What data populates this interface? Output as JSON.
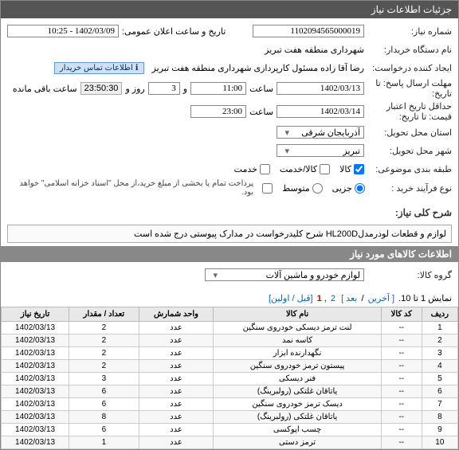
{
  "header": {
    "title": "جزئیات اطلاعات نیاز"
  },
  "form": {
    "niaz_number_label": "شماره نیاز:",
    "niaz_number": "1102094565000019",
    "pub_datetime_label": "تاریخ و ساعت اعلان عمومی:",
    "pub_datetime": "1402/03/09 - 10:25",
    "buyer_label": "نام دستگاه خریدار:",
    "buyer": "شهرداری منطقه هفت تبریز",
    "requester_label": "ایجاد کننده درخواست:",
    "requester": "رضا آقا زاده مسئول کارپردازی شهرداری منطقه هفت تبریز",
    "contact_link": "اطلاعات تماس خریدار",
    "deadline_label": "مهلت ارسال پاسخ: تا تاریخ:",
    "deadline_date": "1402/03/13",
    "time_label": "ساعت",
    "deadline_time": "11:00",
    "and_label": "و",
    "deadline_days": "3",
    "days_and_label": "روز و",
    "remaining": "23:50:30",
    "remaining_label": "ساعت باقی مانده",
    "validity_label": "حداقل تاریخ اعتبار قیمت: تا تاریخ:",
    "validity_date": "1402/03/14",
    "validity_time": "23:00",
    "province_label": "استان محل تحویل:",
    "province": "آذربایجان شرقی",
    "down_arrow": "▾",
    "city_label": "شهر محل تحویل:",
    "city": "تبریز",
    "category_label": "طبقه بندی موضوعی:",
    "cat_kala": "کالا",
    "cat_service": "کالا/خدمت",
    "cat_service2": "خدمت",
    "buy_type_label": "نوع فرآیند خرید :",
    "bt_partial": "جزیی",
    "bt_medium": "متوسط",
    "buy_note": "پرداخت تمام یا بخشی از مبلغ خرید،از محل \"اسناد خزانه اسلامی\" خواهد بود.",
    "desc_title": "شرح کلی نیاز:",
    "desc_text": "لوازم و قطعات لودرمدلHL200D شرح کلیدرخواست در مدارک پیوستی درج شده است",
    "goods_title": "اطلاعات کالاهای مورد نیاز",
    "group_label": "گروه کالا:",
    "group_value": "لوازم خودرو و ماشین آلات",
    "pager_text": "نمایش 1 تا 10.",
    "pager_prev": "[ آخرین",
    "pager_next": "بعد ]",
    "pager_p1": "1",
    "pager_p2": "2",
    "pager_first": "[قبل / اولین]"
  },
  "table": {
    "headers": [
      "ردیف",
      "کد کالا",
      "نام کالا",
      "واحد شمارش",
      "تعداد / مقدار",
      "تاریخ نیاز"
    ],
    "rows": [
      [
        "1",
        "--",
        "لنت ترمز دیسکی خودروی سنگین",
        "عدد",
        "2",
        "1402/03/13"
      ],
      [
        "2",
        "--",
        "کاسه نمد",
        "عدد",
        "2",
        "1402/03/13"
      ],
      [
        "3",
        "--",
        "نگهدارنده ابزار",
        "عدد",
        "2",
        "1402/03/13"
      ],
      [
        "4",
        "--",
        "پیستون ترمز خودروی سنگین",
        "عدد",
        "2",
        "1402/03/13"
      ],
      [
        "5",
        "--",
        "فنر دیسکی",
        "عدد",
        "3",
        "1402/03/13"
      ],
      [
        "6",
        "--",
        "یاتاقان غلتکی (رولبرینگ)",
        "عدد",
        "6",
        "1402/03/13"
      ],
      [
        "7",
        "--",
        "دیسک ترمز خودروی سنگین",
        "عدد",
        "6",
        "1402/03/13"
      ],
      [
        "8",
        "--",
        "یاتاقان غلتکی (رولبرینگ)",
        "عدد",
        "8",
        "1402/03/13"
      ],
      [
        "9",
        "--",
        "چسب اپوکسی",
        "عدد",
        "6",
        "1402/03/13"
      ],
      [
        "10",
        "--",
        "ترمز دستی",
        "عدد",
        "1",
        "1402/03/13"
      ]
    ]
  }
}
